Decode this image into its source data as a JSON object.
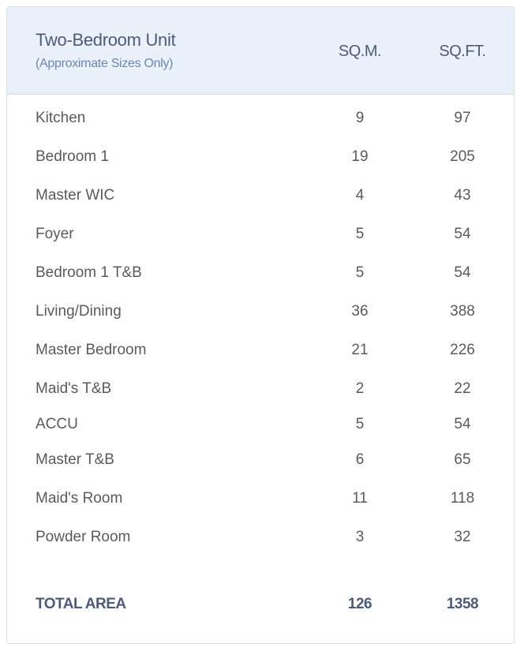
{
  "header": {
    "title": "Two-Bedroom Unit",
    "subtitle": "(Approximate Sizes Only)",
    "col_sqm": "SQ.M.",
    "col_sqft": "SQ.FT."
  },
  "colors": {
    "header_bg": "#eaf1fb",
    "header_text": "#4d5b79",
    "subtitle": "#6a87ad",
    "body_text": "#5a5a5a"
  },
  "rows": [
    {
      "room": "Kitchen",
      "sqm": "9",
      "sqft": "97"
    },
    {
      "room": "Bedroom 1",
      "sqm": "19",
      "sqft": "205"
    },
    {
      "room": "Master WIC",
      "sqm": "4",
      "sqft": "43"
    },
    {
      "room": "Foyer",
      "sqm": "5",
      "sqft": "54"
    },
    {
      "room": "Bedroom 1 T&B",
      "sqm": "5",
      "sqft": "54"
    },
    {
      "room": "Living/Dining",
      "sqm": "36",
      "sqft": "388"
    },
    {
      "room": "Master Bedroom",
      "sqm": "21",
      "sqft": "226"
    },
    {
      "room": "Maid's T&B",
      "sqm": "2",
      "sqft": "22"
    },
    {
      "room": "ACCU",
      "sqm": "5",
      "sqft": "54"
    },
    {
      "room": "Master T&B",
      "sqm": "6",
      "sqft": "65"
    },
    {
      "room": "Maid's Room",
      "sqm": "11",
      "sqft": "118"
    },
    {
      "room": "Powder Room",
      "sqm": "3",
      "sqft": "32"
    }
  ],
  "total": {
    "label": "TOTAL AREA",
    "sqm": "126",
    "sqft": "1358"
  }
}
